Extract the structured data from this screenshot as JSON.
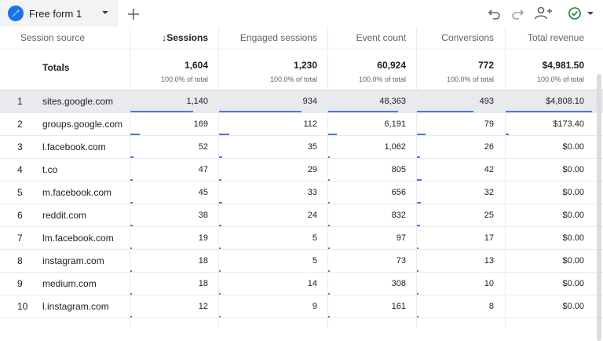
{
  "tab": {
    "title": "Free form 1",
    "add_icon": "plus-icon",
    "edit_icon": "pencil-icon"
  },
  "toolbar": {
    "undo": "undo-icon",
    "redo": "redo-icon",
    "share": "share-users-icon",
    "status": "check-circle-icon"
  },
  "columns": {
    "source": "Session source",
    "sessions": "↓Sessions",
    "engaged": "Engaged sessions",
    "events": "Event count",
    "conversions": "Conversions",
    "revenue": "Total revenue"
  },
  "totals": {
    "label": "Totals",
    "sessions": "1,604",
    "engaged": "1,230",
    "events": "60,924",
    "conversions": "772",
    "revenue": "$4,981.50",
    "pct": "100.0% of total"
  },
  "rows": [
    {
      "n": "1",
      "source": "sites.google.com",
      "sessions": "1,140",
      "engaged": "934",
      "events": "48,363",
      "conversions": "493",
      "revenue": "$4,808.10",
      "frac": [
        0.711,
        0.759,
        0.794,
        0.639,
        0.965
      ]
    },
    {
      "n": "2",
      "source": "groups.google.com",
      "sessions": "169",
      "engaged": "112",
      "events": "6,191",
      "conversions": "79",
      "revenue": "$173.40",
      "frac": [
        0.105,
        0.091,
        0.102,
        0.102,
        0.035
      ]
    },
    {
      "n": "3",
      "source": "l.facebook.com",
      "sessions": "52",
      "engaged": "35",
      "events": "1,062",
      "conversions": "26",
      "revenue": "$0.00",
      "frac": [
        0.032,
        0.028,
        0.017,
        0.034,
        0
      ]
    },
    {
      "n": "4",
      "source": "t.co",
      "sessions": "47",
      "engaged": "29",
      "events": "805",
      "conversions": "42",
      "revenue": "$0.00",
      "frac": [
        0.029,
        0.024,
        0.013,
        0.054,
        0
      ]
    },
    {
      "n": "5",
      "source": "m.facebook.com",
      "sessions": "45",
      "engaged": "33",
      "events": "656",
      "conversions": "32",
      "revenue": "$0.00",
      "frac": [
        0.028,
        0.027,
        0.011,
        0.041,
        0
      ]
    },
    {
      "n": "6",
      "source": "reddit.com",
      "sessions": "38",
      "engaged": "24",
      "events": "832",
      "conversions": "25",
      "revenue": "$0.00",
      "frac": [
        0.024,
        0.02,
        0.014,
        0.032,
        0
      ]
    },
    {
      "n": "7",
      "source": "lm.facebook.com",
      "sessions": "19",
      "engaged": "5",
      "events": "97",
      "conversions": "17",
      "revenue": "$0.00",
      "frac": [
        0.012,
        0.004,
        0.002,
        0.022,
        0
      ]
    },
    {
      "n": "8",
      "source": "instagram.com",
      "sessions": "18",
      "engaged": "5",
      "events": "73",
      "conversions": "13",
      "revenue": "$0.00",
      "frac": [
        0.011,
        0.004,
        0.001,
        0.017,
        0
      ]
    },
    {
      "n": "9",
      "source": "medium.com",
      "sessions": "18",
      "engaged": "14",
      "events": "308",
      "conversions": "10",
      "revenue": "$0.00",
      "frac": [
        0.011,
        0.011,
        0.005,
        0.013,
        0
      ]
    },
    {
      "n": "10",
      "source": "l.instagram.com",
      "sessions": "12",
      "engaged": "9",
      "events": "161",
      "conversions": "8",
      "revenue": "$0.00",
      "frac": [
        0.007,
        0.007,
        0.003,
        0.01,
        0
      ]
    }
  ],
  "colors": {
    "accent": "#1a73e8",
    "bar": "#4a7bd8",
    "highlight": "#e8eaed"
  }
}
